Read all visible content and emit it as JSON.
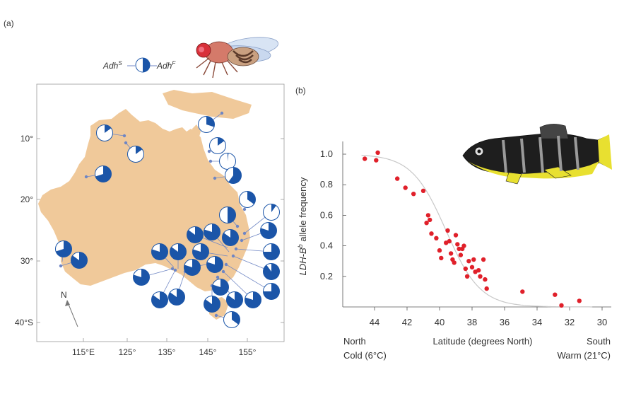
{
  "panel_a": {
    "label": "(a)",
    "legend_left": "Adh",
    "legend_left_sup": "S",
    "legend_right": "Adh",
    "legend_right_sup": "F",
    "north_label": "N",
    "lat_labels": [
      "10°",
      "20°",
      "30°",
      "40°S"
    ],
    "lon_labels": [
      "115°E",
      "125°",
      "135°",
      "145°",
      "155°"
    ],
    "colors": {
      "land": "#f0c99a",
      "pie_blue": "#1b55a8",
      "callout": "#6f86c4",
      "frame": "#999999"
    }
  },
  "panel_b": {
    "label": "(b)",
    "xlabel": "Latitude (degrees North)",
    "ylabel_prefix": "LDH-B",
    "ylabel_sup": "b",
    "ylabel_suffix": " allele frequency",
    "north_label": "North",
    "north_sub": "Cold (6°C)",
    "south_label": "South",
    "south_sub": "Warm (21°C)",
    "point_color": "#e0202a",
    "curve_color": "#c8c8c8"
  },
  "chart_data": {
    "type": "scatter",
    "xlabel": "Latitude (degrees North)",
    "ylabel": "LDH-Bb allele frequency",
    "xlim": [
      45,
      30
    ],
    "ylim": [
      0,
      1.05
    ],
    "x_ticks": [
      44,
      42,
      40,
      38,
      36,
      34,
      32,
      30
    ],
    "y_ticks": [
      "0.2",
      "0.4",
      "0.6",
      "0.8",
      "1.0"
    ],
    "x_reversed": true,
    "grid": false,
    "points": [
      [
        44.6,
        0.97
      ],
      [
        43.9,
        0.96
      ],
      [
        43.8,
        1.01
      ],
      [
        42.6,
        0.84
      ],
      [
        42.1,
        0.78
      ],
      [
        41.6,
        0.74
      ],
      [
        41.0,
        0.76
      ],
      [
        40.8,
        0.55
      ],
      [
        40.7,
        0.6
      ],
      [
        40.6,
        0.57
      ],
      [
        40.5,
        0.48
      ],
      [
        40.2,
        0.45
      ],
      [
        40.0,
        0.37
      ],
      [
        39.9,
        0.32
      ],
      [
        39.6,
        0.42
      ],
      [
        39.5,
        0.5
      ],
      [
        39.4,
        0.43
      ],
      [
        39.3,
        0.35
      ],
      [
        39.2,
        0.31
      ],
      [
        39.1,
        0.29
      ],
      [
        39.0,
        0.47
      ],
      [
        38.9,
        0.41
      ],
      [
        38.8,
        0.38
      ],
      [
        38.7,
        0.34
      ],
      [
        38.6,
        0.38
      ],
      [
        38.5,
        0.4
      ],
      [
        38.4,
        0.25
      ],
      [
        38.3,
        0.2
      ],
      [
        38.2,
        0.3
      ],
      [
        38.0,
        0.26
      ],
      [
        37.9,
        0.31
      ],
      [
        37.8,
        0.23
      ],
      [
        37.6,
        0.24
      ],
      [
        37.5,
        0.2
      ],
      [
        37.3,
        0.31
      ],
      [
        37.2,
        0.18
      ],
      [
        37.1,
        0.12
      ],
      [
        34.9,
        0.1
      ],
      [
        32.9,
        0.08
      ],
      [
        32.5,
        0.01
      ],
      [
        31.4,
        0.04
      ]
    ],
    "fit_curve": true
  }
}
